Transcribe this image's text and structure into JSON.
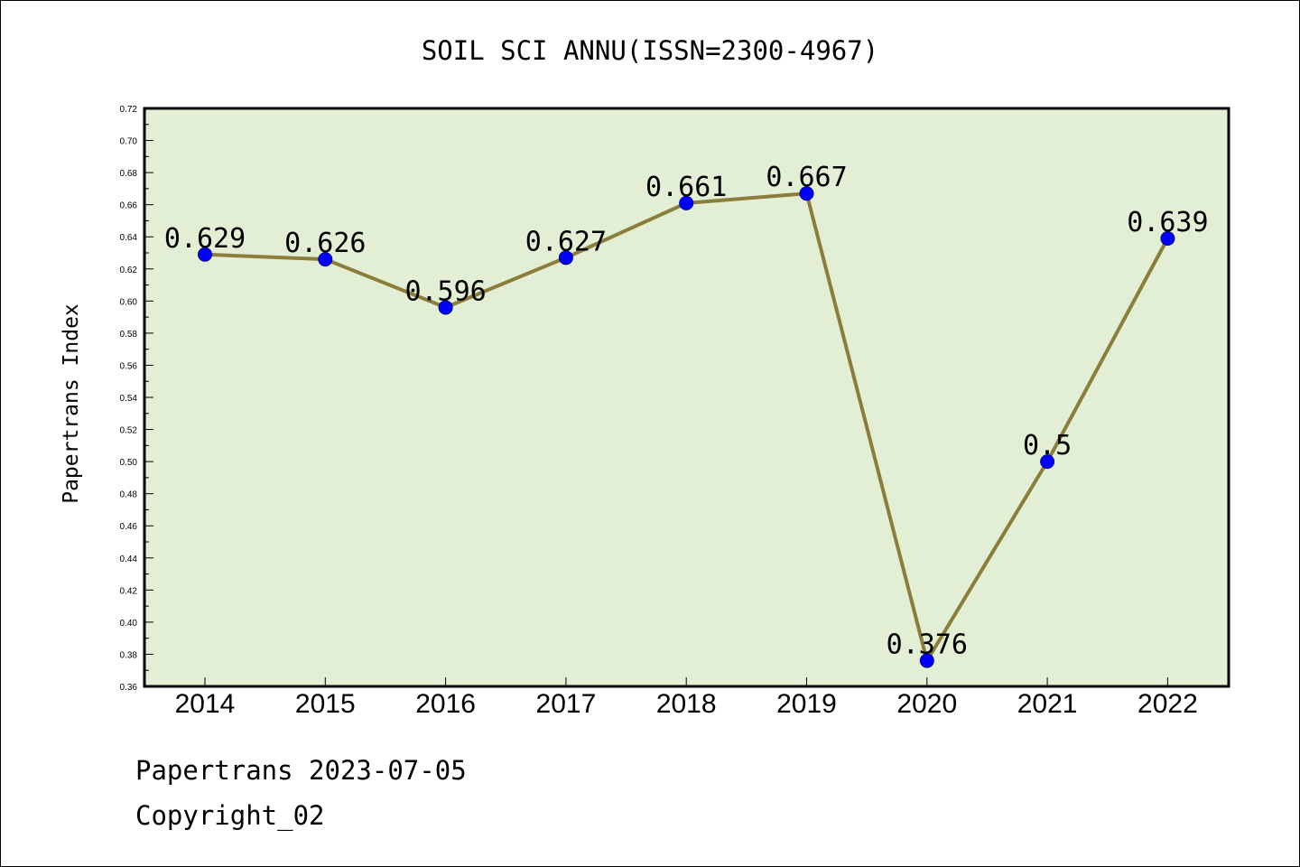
{
  "chart_data": {
    "type": "line",
    "title": "SOIL SCI ANNU(ISSN=2300-4967)",
    "ylabel": "Papertrans Index",
    "xlabel": "",
    "categories": [
      "2014",
      "2015",
      "2016",
      "2017",
      "2018",
      "2019",
      "2020",
      "2021",
      "2022"
    ],
    "values": [
      0.629,
      0.626,
      0.596,
      0.627,
      0.661,
      0.667,
      0.376,
      0.5,
      0.639
    ],
    "data_labels": [
      "0.629",
      "0.626",
      "0.596",
      "0.627",
      "0.661",
      "0.667",
      "0.376",
      "0.5",
      "0.639"
    ],
    "ylim": [
      0.36,
      0.72
    ],
    "yticks": [
      "0.36",
      "0.38",
      "0.40",
      "0.42",
      "0.44",
      "0.46",
      "0.48",
      "0.50",
      "0.52",
      "0.54",
      "0.56",
      "0.58",
      "0.60",
      "0.62",
      "0.64",
      "0.66",
      "0.68",
      "0.70",
      "0.72"
    ],
    "grid": false,
    "legend": "none",
    "colors": {
      "plot_background": "#e2efd5",
      "line": "#8b7d3a",
      "marker": "#0000ff"
    }
  },
  "footer": {
    "line1": "Papertrans 2023-07-05",
    "line2": "Copyright_02"
  }
}
